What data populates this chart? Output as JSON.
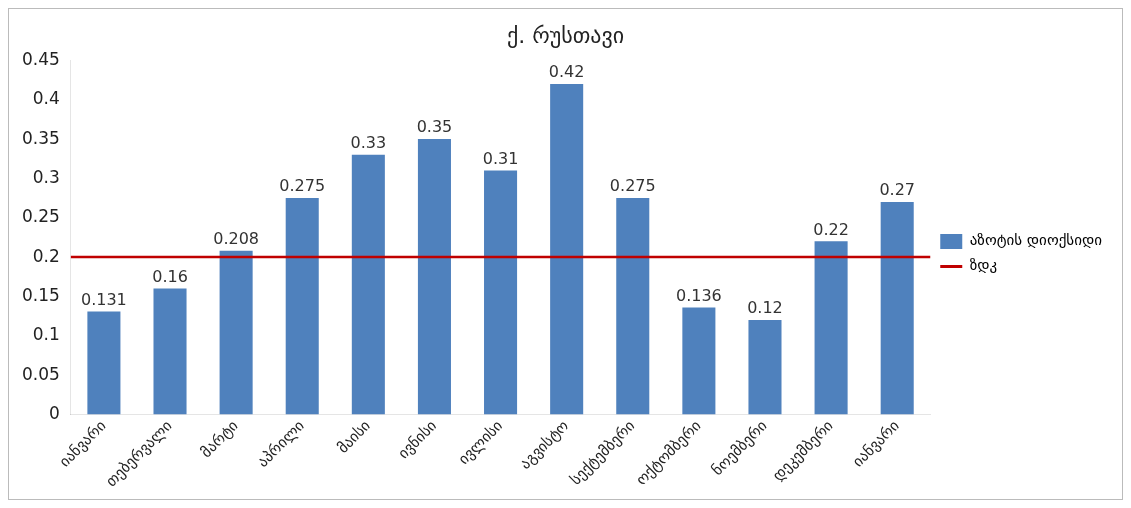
{
  "chart_data": {
    "type": "bar",
    "title": "ქ. რუსთავი",
    "categories": [
      "იანვარი",
      "თებერვალი",
      "მარტი",
      "აპრილი",
      "მაისი",
      "ივნისი",
      "ივლისი",
      "აგვისტო",
      "სექტემბერი",
      "ოქტომბერი",
      "ნოემბერი",
      "დეკემბერი",
      "იანვარი"
    ],
    "series": [
      {
        "name": "აზოტის დიოქსიდი",
        "color": "#4f81bd",
        "values": [
          0.131,
          0.16,
          0.208,
          0.275,
          0.33,
          0.35,
          0.31,
          0.42,
          0.275,
          0.136,
          0.12,
          0.22,
          0.27
        ]
      }
    ],
    "ylim": [
      0,
      0.45
    ],
    "yticks": [
      0,
      0.05,
      0.1,
      0.15,
      0.2,
      0.25,
      0.3,
      0.35,
      0.4,
      0.45
    ],
    "ref_lines": [
      {
        "axis": "y",
        "value": 0.2,
        "label": "ზდკ",
        "color": "#c00000"
      }
    ],
    "data_labels": true,
    "grid": false,
    "legend": "right"
  }
}
